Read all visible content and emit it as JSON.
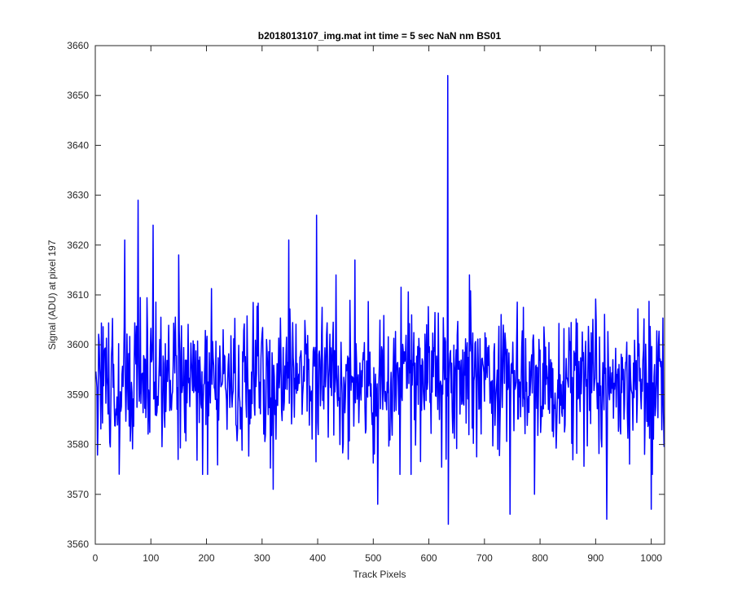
{
  "chart_data": {
    "type": "line",
    "title": "b2018013107_img.mat int time = 5 sec  NaN nm BS01",
    "xlabel": "Track Pixels",
    "ylabel": "Signal (ADU) at pixel 197",
    "xlim": [
      0,
      1024
    ],
    "ylim": [
      3560,
      3660
    ],
    "xticks": [
      0,
      100,
      200,
      300,
      400,
      500,
      600,
      700,
      800,
      900,
      1000
    ],
    "yticks": [
      3560,
      3570,
      3580,
      3590,
      3600,
      3610,
      3620,
      3630,
      3640,
      3650,
      3660
    ],
    "grid": false,
    "legend": "none",
    "series": [
      {
        "color": "#0000ff",
        "approximate": true,
        "x_start": 1,
        "x_end": 1024,
        "point_count": 1024,
        "mean": 3593,
        "noise_amplitude": 7,
        "random_seed": 2018013107,
        "peaks": [
          {
            "x": 53,
            "y": 3621
          },
          {
            "x": 77,
            "y": 3629
          },
          {
            "x": 104,
            "y": 3624
          },
          {
            "x": 150,
            "y": 3618
          },
          {
            "x": 348,
            "y": 3621
          },
          {
            "x": 398,
            "y": 3626
          },
          {
            "x": 467,
            "y": 3617
          },
          {
            "x": 634,
            "y": 3654
          }
        ],
        "troughs": [
          {
            "x": 149,
            "y": 3577
          },
          {
            "x": 202,
            "y": 3574
          },
          {
            "x": 320,
            "y": 3571
          },
          {
            "x": 508,
            "y": 3568
          },
          {
            "x": 635,
            "y": 3564
          },
          {
            "x": 746,
            "y": 3566
          },
          {
            "x": 790,
            "y": 3570
          },
          {
            "x": 920,
            "y": 3565
          },
          {
            "x": 1000,
            "y": 3567
          }
        ]
      }
    ]
  }
}
